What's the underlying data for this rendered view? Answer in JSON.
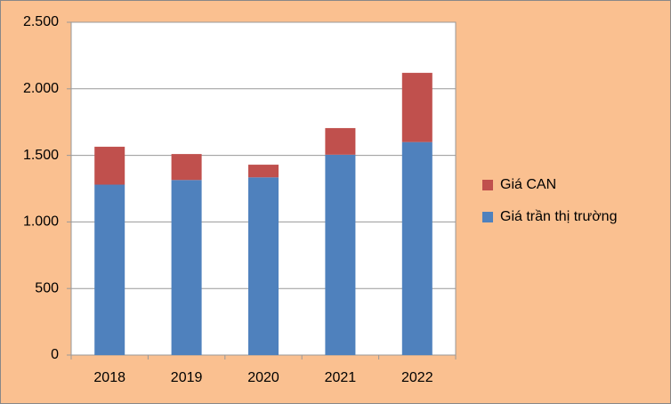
{
  "chart_data": {
    "type": "stacked_bar",
    "categories": [
      "2018",
      "2019",
      "2020",
      "2021",
      "2022"
    ],
    "series": [
      {
        "name": "Giá trần thị trường",
        "color": "#4f81bd",
        "values": [
          1280,
          1315,
          1335,
          1505,
          1600
        ]
      },
      {
        "name": "Giá CAN",
        "color": "#c0504d",
        "values": [
          285,
          195,
          95,
          200,
          520
        ]
      }
    ],
    "ylim": [
      0,
      2500
    ],
    "yticks": [
      0,
      500,
      {
        "value": 1000,
        "label": "1.000"
      },
      {
        "value": 1500,
        "label": "1.500"
      },
      {
        "value": 2000,
        "label": "2.000"
      },
      {
        "value": 2500,
        "label": "2.500"
      }
    ],
    "grid": true,
    "legend": "right"
  }
}
